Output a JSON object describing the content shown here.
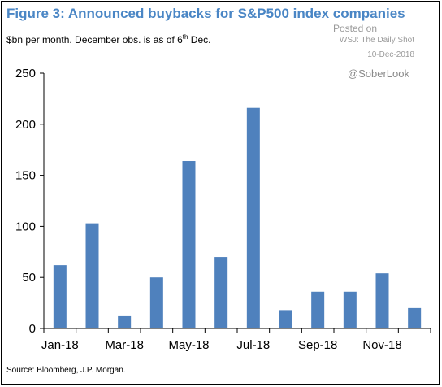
{
  "title": "Figure 3: Announced buybacks for S&P500 index companies",
  "subtitle": {
    "before": "$bn per month. December obs. is as of 6",
    "sup": "th",
    "after": " Dec."
  },
  "watermark": {
    "line1": "Posted on",
    "line2": "WSJ: The Daily Shot",
    "line3": "10-Dec-2018",
    "handle": "@SoberLook"
  },
  "source": "Source: Bloomberg, J.P. Morgan.",
  "colors": {
    "bar": "#4f81bd",
    "title": "#4a86c5"
  },
  "chart_data": {
    "type": "bar",
    "categories": [
      "Jan-18",
      "Feb-18",
      "Mar-18",
      "Apr-18",
      "May-18",
      "Jun-18",
      "Jul-18",
      "Aug-18",
      "Sep-18",
      "Oct-18",
      "Nov-18",
      "Dec-18"
    ],
    "values": [
      62,
      103,
      12,
      50,
      164,
      70,
      216,
      18,
      36,
      36,
      54,
      20
    ],
    "x_tick_labels": [
      "Jan-18",
      "Mar-18",
      "May-18",
      "Jul-18",
      "Sep-18",
      "Nov-18"
    ],
    "y_ticks": [
      0,
      50,
      100,
      150,
      200,
      250
    ],
    "ylim": [
      0,
      250
    ],
    "grid": false,
    "legend": "none"
  }
}
